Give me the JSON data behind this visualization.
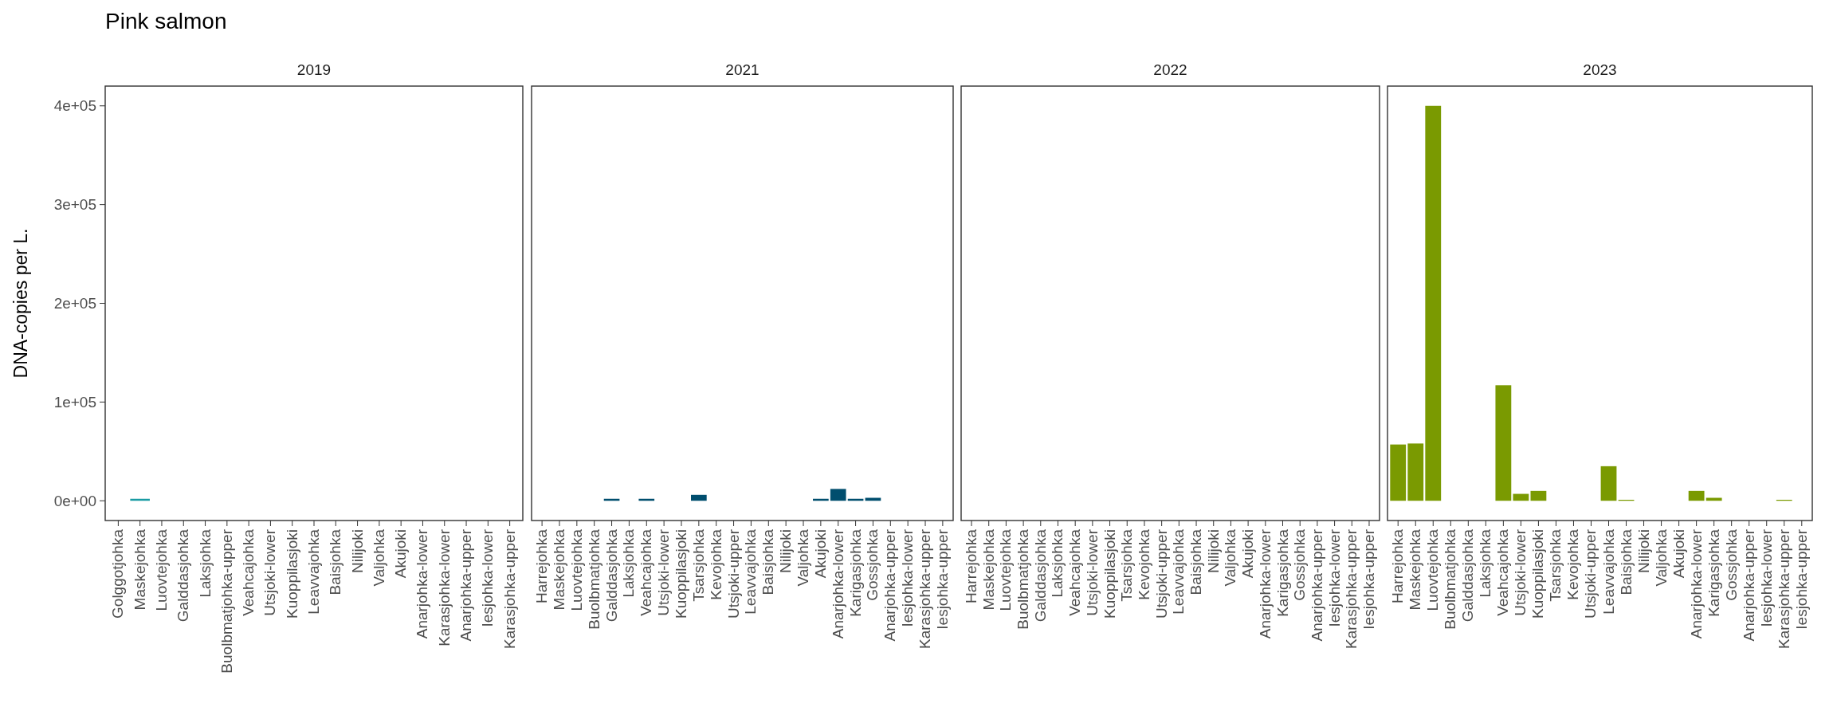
{
  "chart_data": [
    {
      "type": "bar",
      "title": "Pink salmon",
      "subtitle": "2019",
      "ylabel": "DNA-copies per L.",
      "color": "#1a9ba3",
      "categories": [
        "Golggotjohka",
        "Maskejohka",
        "Luovtejohka",
        "Galddasjohka",
        "Laksjohka",
        "Buolbmatjohka-upper",
        "Veahcajohka",
        "Utsjoki-lower",
        "Kuoppilasjoki",
        "Leavvajohka",
        "Baisjohka",
        "Nilijoki",
        "Valjohka",
        "Akujoki",
        "Anarjohka-lower",
        "Karasjohka-lower",
        "Anarjohka-upper",
        "Iesjohka-lower",
        "Karasjohka-upper"
      ],
      "values": [
        null,
        2000,
        null,
        null,
        null,
        null,
        null,
        null,
        null,
        null,
        null,
        null,
        null,
        null,
        null,
        null,
        null,
        null,
        null
      ],
      "ylim": [
        -20000,
        420000
      ],
      "yticks": [
        {
          "value": 0,
          "label": "0e+00"
        },
        {
          "value": 100000,
          "label": "1e+05"
        },
        {
          "value": 200000,
          "label": "2e+05"
        },
        {
          "value": 300000,
          "label": "3e+05"
        },
        {
          "value": 400000,
          "label": "4e+05"
        }
      ]
    },
    {
      "type": "bar",
      "subtitle": "2021",
      "color": "#004e6e",
      "tick_labels": "x",
      "categories": [
        "Harrejohka",
        "Maskejohka",
        "Luovtejohka",
        "Buolbmatjohka",
        "Galddasjohka",
        "Laksjohka",
        "Veahcajohka",
        "Utsjoki-lower",
        "Kuoppilasjoki",
        "Tsarsjohka",
        "Kevojohka",
        "Utsjoki-upper",
        "Leavvajohka",
        "Baisjohka",
        "Nilijoki",
        "Valjohka",
        "Akujoki",
        "Anarjohka-lower",
        "Karigasjohka",
        "Gossjohka",
        "Anarjohka-upper",
        "Iesjohka-lower",
        "Karasjohka-upper",
        "Iesjohka-upper"
      ],
      "values": [
        null,
        null,
        null,
        null,
        2000,
        null,
        2000,
        null,
        null,
        6000,
        null,
        null,
        null,
        null,
        null,
        null,
        2000,
        12000,
        2000,
        3000,
        null,
        null,
        null,
        null
      ],
      "ylim": [
        -20000,
        420000
      ]
    },
    {
      "type": "bar",
      "subtitle": "2022",
      "tick_labels": "x",
      "categories": [
        "Harrejohka",
        "Maskejohka",
        "Luovtejohka",
        "Buolbmatjohka",
        "Galddasjohka",
        "Laksjohka",
        "Veahcajohka",
        "Utsjoki-lower",
        "Kuoppilasjoki",
        "Tsarsjohka",
        "Kevojohka",
        "Utsjoki-upper",
        "Leavvajohka",
        "Baisjohka",
        "Nilijoki",
        "Valjohka",
        "Akujoki",
        "Anarjohka-lower",
        "Karigasjohka",
        "Gossjohka",
        "Anarjohka-upper",
        "Iesjohka-lower",
        "Karasjohka-upper",
        "Iesjohka-upper"
      ],
      "values": [
        null,
        null,
        null,
        null,
        null,
        null,
        null,
        null,
        null,
        null,
        null,
        null,
        null,
        null,
        null,
        null,
        null,
        null,
        null,
        null,
        null,
        null,
        null,
        null
      ],
      "ylim": [
        -20000,
        420000
      ]
    },
    {
      "type": "bar",
      "subtitle": "2023",
      "color": "#7a9a01",
      "tick_labels": "x",
      "categories": [
        "Harrejohka",
        "Maskejohka",
        "Luovtejohka",
        "Buolbmatjohka",
        "Galddasjohka",
        "Laksjohka",
        "Veahcajohka",
        "Utsjoki-lower",
        "Kuoppilasjoki",
        "Tsarsjohka",
        "Kevojohka",
        "Utsjoki-upper",
        "Leavvajohka",
        "Baisjohka",
        "Nilijoki",
        "Valjohka",
        "Akujoki",
        "Anarjohka-lower",
        "Karigasjohka",
        "Gossjohka",
        "Anarjohka-upper",
        "Iesjohka-lower",
        "Karasjohka-upper",
        "Iesjohka-upper"
      ],
      "values": [
        57000,
        58000,
        400000,
        null,
        null,
        null,
        117000,
        7000,
        10000,
        null,
        null,
        null,
        35000,
        1000,
        null,
        null,
        null,
        10000,
        3000,
        null,
        null,
        null,
        1000,
        null
      ],
      "ylim": [
        -20000,
        420000
      ]
    }
  ]
}
